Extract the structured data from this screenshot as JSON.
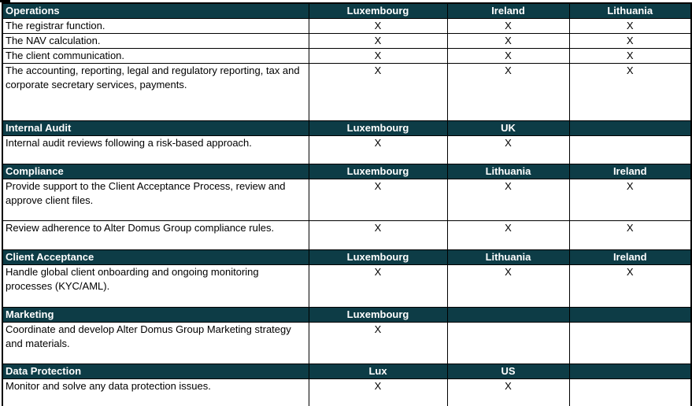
{
  "theme": {
    "header_bg": "#0d3c46",
    "header_text": "#ffffff",
    "border": "#000000",
    "body_text": "#000000"
  },
  "table": {
    "sections": [
      {
        "title": "Operations",
        "col_headers": [
          "Luxembourg",
          "Ireland",
          "Lithuania"
        ],
        "rows": [
          {
            "label": "The registrar function.",
            "marks": [
              "X",
              "X",
              "X"
            ]
          },
          {
            "label": "The NAV calculation.",
            "marks": [
              "X",
              "X",
              "X"
            ]
          },
          {
            "label": "The client communication.",
            "marks": [
              "X",
              "X",
              "X"
            ]
          },
          {
            "label": "The accounting, reporting, legal and regulatory reporting, tax and corporate secretary services, payments.",
            "marks": [
              "X",
              "X",
              "X"
            ]
          }
        ]
      },
      {
        "title": "Internal Audit",
        "col_headers": [
          "Luxembourg",
          "UK",
          ""
        ],
        "rows": [
          {
            "label": "Internal audit reviews following a risk-based approach.",
            "marks": [
              "X",
              "X",
              ""
            ]
          }
        ]
      },
      {
        "title": "Compliance",
        "col_headers": [
          "Luxembourg",
          "Lithuania",
          "Ireland"
        ],
        "rows": [
          {
            "label": "Provide support to the Client Acceptance Process, review and approve client files.",
            "marks": [
              "X",
              "X",
              "X"
            ]
          },
          {
            "label": "Review adherence to Alter Domus Group compliance rules.",
            "marks": [
              "X",
              "X",
              "X"
            ]
          }
        ]
      },
      {
        "title": "Client Acceptance",
        "col_headers": [
          "Luxembourg",
          "Lithuania",
          "Ireland"
        ],
        "rows": [
          {
            "label": "Handle global client onboarding and ongoing monitoring processes (KYC/AML).",
            "marks": [
              "X",
              "X",
              "X"
            ]
          }
        ]
      },
      {
        "title": "Marketing",
        "col_headers": [
          "Luxembourg",
          "",
          ""
        ],
        "rows": [
          {
            "label": "Coordinate and develop Alter Domus Group Marketing strategy and materials.",
            "marks": [
              "X",
              "",
              ""
            ]
          }
        ]
      },
      {
        "title": "Data Protection",
        "col_headers": [
          "Lux",
          "US",
          ""
        ],
        "rows": [
          {
            "label": "Monitor and solve any data protection issues.",
            "marks": [
              "X",
              "X",
              ""
            ]
          }
        ]
      }
    ]
  }
}
